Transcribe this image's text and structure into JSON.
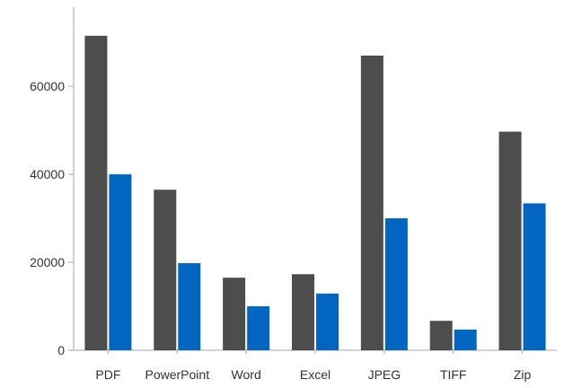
{
  "colors": {
    "series_a": "#4d4d4d",
    "series_b": "#0066c0",
    "axis": "#aaaaaa",
    "text": "#333333"
  },
  "chart_data": {
    "type": "bar",
    "title": "",
    "xlabel": "",
    "ylabel": "",
    "categories": [
      "PDF",
      "PowerPoint",
      "Word",
      "Excel",
      "JPEG",
      "TIFF",
      "Zip"
    ],
    "series": [
      {
        "values": [
          71500,
          36500,
          16500,
          17300,
          67000,
          6700,
          49700
        ]
      },
      {
        "values": [
          40000,
          19800,
          10000,
          12900,
          30000,
          4700,
          33400
        ]
      }
    ],
    "ylim": [
      0,
      78000
    ],
    "yticks": [
      0,
      20000,
      40000,
      60000
    ],
    "grid": false,
    "legend": "none"
  }
}
